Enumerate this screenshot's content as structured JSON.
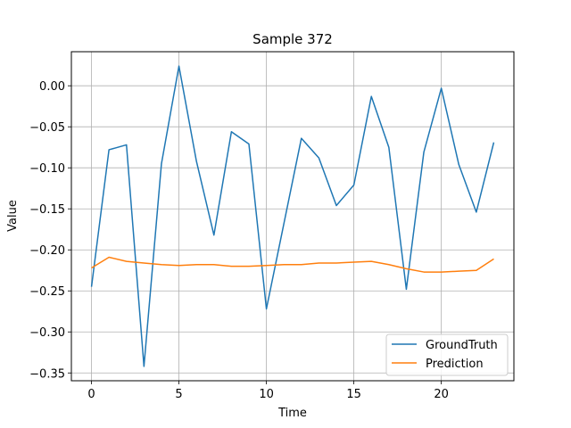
{
  "chart_data": {
    "type": "line",
    "title": "Sample 372",
    "xlabel": "Time",
    "ylabel": "Value",
    "xlim": [
      -1.15,
      24.15
    ],
    "ylim": [
      -0.3595,
      0.0415
    ],
    "x_ticks": [
      0,
      5,
      10,
      15,
      20
    ],
    "y_ticks": [
      -0.35,
      -0.3,
      -0.25,
      -0.2,
      -0.15,
      -0.1,
      -0.05,
      0.0
    ],
    "grid": true,
    "legend_position": "lower right",
    "x": [
      0,
      1,
      2,
      3,
      4,
      5,
      6,
      7,
      8,
      9,
      10,
      11,
      12,
      13,
      14,
      15,
      16,
      17,
      18,
      19,
      20,
      21,
      22,
      23
    ],
    "series": [
      {
        "name": "GroundTruth",
        "color": "#1f77b4",
        "values": [
          -0.245,
          -0.078,
          -0.072,
          -0.342,
          -0.095,
          0.024,
          -0.092,
          -0.182,
          -0.056,
          -0.071,
          -0.272,
          -0.168,
          -0.064,
          -0.088,
          -0.146,
          -0.121,
          -0.013,
          -0.075,
          -0.248,
          -0.081,
          -0.003,
          -0.096,
          -0.154,
          -0.069
        ]
      },
      {
        "name": "Prediction",
        "color": "#ff7f0e",
        "values": [
          -0.222,
          -0.209,
          -0.214,
          -0.216,
          -0.218,
          -0.219,
          -0.218,
          -0.218,
          -0.22,
          -0.22,
          -0.219,
          -0.218,
          -0.218,
          -0.216,
          -0.216,
          -0.215,
          -0.214,
          -0.218,
          -0.223,
          -0.227,
          -0.227,
          -0.226,
          -0.225,
          -0.211
        ]
      }
    ]
  }
}
